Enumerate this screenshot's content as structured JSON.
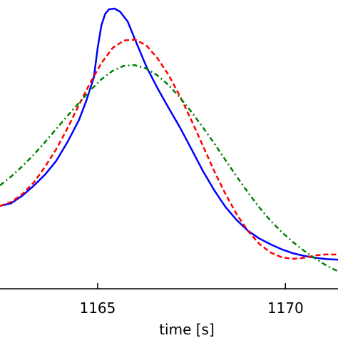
{
  "chart_data": {
    "type": "line",
    "xlabel": "time [s]",
    "ylabel": "",
    "xlim": [
      1162.4,
      1171.4
    ],
    "ylim": [
      0.0,
      1.0
    ],
    "xticks": [
      1165,
      1170
    ],
    "xtick_labels": [
      "1165",
      "1170"
    ],
    "grid": false,
    "series": [
      {
        "color": "#0000ff",
        "style": "solid",
        "points": [
          [
            1162.4,
            0.258
          ],
          [
            1162.7,
            0.268
          ],
          [
            1163.0,
            0.297
          ],
          [
            1163.3,
            0.334
          ],
          [
            1163.6,
            0.376
          ],
          [
            1163.9,
            0.428
          ],
          [
            1164.2,
            0.499
          ],
          [
            1164.5,
            0.58
          ],
          [
            1164.7,
            0.654
          ],
          [
            1164.9,
            0.742
          ],
          [
            1165.0,
            0.851
          ],
          [
            1165.1,
            0.937
          ],
          [
            1165.2,
            0.98
          ],
          [
            1165.3,
            0.997
          ],
          [
            1165.45,
            1.0
          ],
          [
            1165.6,
            0.988
          ],
          [
            1165.8,
            0.951
          ],
          [
            1166.0,
            0.882
          ],
          [
            1166.3,
            0.781
          ],
          [
            1166.6,
            0.699
          ],
          [
            1166.9,
            0.624
          ],
          [
            1167.2,
            0.551
          ],
          [
            1167.5,
            0.471
          ],
          [
            1167.8,
            0.39
          ],
          [
            1168.1,
            0.318
          ],
          [
            1168.4,
            0.255
          ],
          [
            1168.7,
            0.205
          ],
          [
            1169.0,
            0.165
          ],
          [
            1169.3,
            0.136
          ],
          [
            1169.6,
            0.114
          ],
          [
            1169.9,
            0.095
          ],
          [
            1170.2,
            0.08
          ],
          [
            1170.5,
            0.07
          ],
          [
            1170.8,
            0.063
          ],
          [
            1171.1,
            0.058
          ],
          [
            1171.4,
            0.056
          ]
        ]
      },
      {
        "color": "#ff0000",
        "style": "dashed",
        "points": [
          [
            1162.4,
            0.258
          ],
          [
            1162.7,
            0.273
          ],
          [
            1163.0,
            0.303
          ],
          [
            1163.3,
            0.346
          ],
          [
            1163.6,
            0.405
          ],
          [
            1163.9,
            0.472
          ],
          [
            1164.2,
            0.551
          ],
          [
            1164.5,
            0.637
          ],
          [
            1164.8,
            0.72
          ],
          [
            1165.1,
            0.795
          ],
          [
            1165.4,
            0.852
          ],
          [
            1165.7,
            0.88
          ],
          [
            1166.0,
            0.883
          ],
          [
            1166.3,
            0.861
          ],
          [
            1166.6,
            0.812
          ],
          [
            1166.9,
            0.748
          ],
          [
            1167.2,
            0.668
          ],
          [
            1167.5,
            0.579
          ],
          [
            1167.8,
            0.485
          ],
          [
            1168.1,
            0.39
          ],
          [
            1168.4,
            0.304
          ],
          [
            1168.7,
            0.227
          ],
          [
            1169.0,
            0.164
          ],
          [
            1169.3,
            0.116
          ],
          [
            1169.6,
            0.083
          ],
          [
            1169.9,
            0.065
          ],
          [
            1170.2,
            0.059
          ],
          [
            1170.5,
            0.063
          ],
          [
            1170.8,
            0.072
          ],
          [
            1171.1,
            0.076
          ],
          [
            1171.4,
            0.075
          ]
        ]
      },
      {
        "color": "#008000",
        "style": "dashdot",
        "points": [
          [
            1162.4,
            0.335
          ],
          [
            1162.7,
            0.369
          ],
          [
            1163.0,
            0.408
          ],
          [
            1163.3,
            0.451
          ],
          [
            1163.6,
            0.498
          ],
          [
            1163.9,
            0.548
          ],
          [
            1164.2,
            0.597
          ],
          [
            1164.5,
            0.645
          ],
          [
            1164.8,
            0.692
          ],
          [
            1165.1,
            0.734
          ],
          [
            1165.4,
            0.766
          ],
          [
            1165.7,
            0.785
          ],
          [
            1166.0,
            0.787
          ],
          [
            1166.3,
            0.774
          ],
          [
            1166.6,
            0.748
          ],
          [
            1166.9,
            0.711
          ],
          [
            1167.2,
            0.664
          ],
          [
            1167.5,
            0.611
          ],
          [
            1167.8,
            0.554
          ],
          [
            1168.1,
            0.494
          ],
          [
            1168.4,
            0.431
          ],
          [
            1168.7,
            0.369
          ],
          [
            1169.0,
            0.309
          ],
          [
            1169.3,
            0.253
          ],
          [
            1169.6,
            0.203
          ],
          [
            1169.9,
            0.16
          ],
          [
            1170.2,
            0.122
          ],
          [
            1170.5,
            0.089
          ],
          [
            1170.8,
            0.06
          ],
          [
            1171.1,
            0.033
          ],
          [
            1171.4,
            0.012
          ]
        ]
      }
    ]
  }
}
